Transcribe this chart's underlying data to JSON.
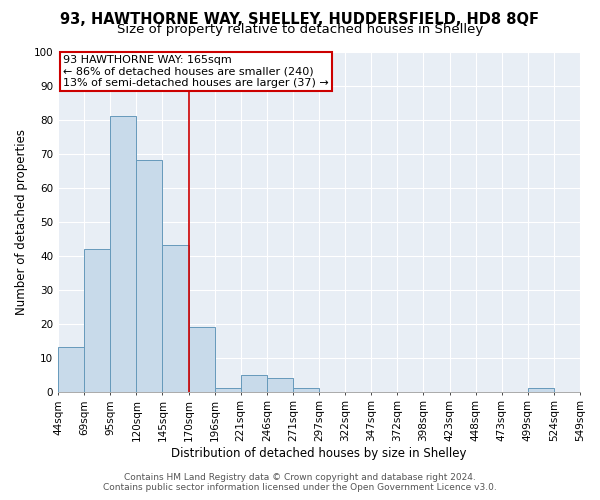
{
  "title": "93, HAWTHORNE WAY, SHELLEY, HUDDERSFIELD, HD8 8QF",
  "subtitle": "Size of property relative to detached houses in Shelley",
  "xlabel": "Distribution of detached houses by size in Shelley",
  "ylabel": "Number of detached properties",
  "bar_values": [
    13,
    42,
    81,
    68,
    43,
    19,
    1,
    5,
    4,
    1,
    0,
    0,
    0,
    0,
    0,
    0,
    0,
    0,
    1,
    0
  ],
  "bin_labels": [
    "44sqm",
    "69sqm",
    "95sqm",
    "120sqm",
    "145sqm",
    "170sqm",
    "196sqm",
    "221sqm",
    "246sqm",
    "271sqm",
    "297sqm",
    "322sqm",
    "347sqm",
    "372sqm",
    "398sqm",
    "423sqm",
    "448sqm",
    "473sqm",
    "499sqm",
    "524sqm",
    "549sqm"
  ],
  "bar_color": "#c8daea",
  "bar_edge_color": "#6699bb",
  "vline_color": "#cc0000",
  "annotation_text": "93 HAWTHORNE WAY: 165sqm\n← 86% of detached houses are smaller (240)\n13% of semi-detached houses are larger (37) →",
  "annotation_box_color": "#ffffff",
  "annotation_box_edge_color": "#cc0000",
  "ylim": [
    0,
    100
  ],
  "yticks": [
    0,
    10,
    20,
    30,
    40,
    50,
    60,
    70,
    80,
    90,
    100
  ],
  "footer_line1": "Contains HM Land Registry data © Crown copyright and database right 2024.",
  "footer_line2": "Contains public sector information licensed under the Open Government Licence v3.0.",
  "background_color": "#ffffff",
  "plot_bg_color": "#e8eef5",
  "grid_color": "#ffffff",
  "title_fontsize": 10.5,
  "subtitle_fontsize": 9.5,
  "axis_label_fontsize": 8.5,
  "tick_fontsize": 7.5,
  "annot_fontsize": 8,
  "footer_fontsize": 6.5
}
